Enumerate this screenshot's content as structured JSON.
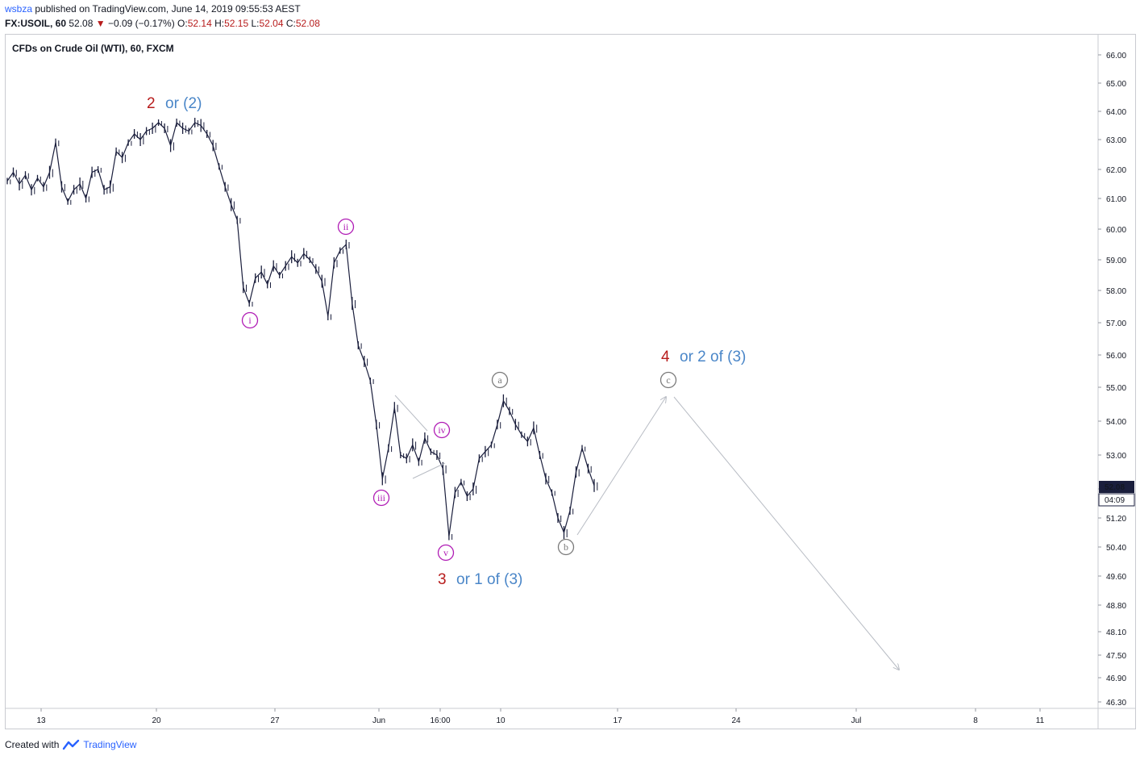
{
  "header": {
    "author": "wsbza",
    "published_text": "published on TradingView.com, June 14, 2019 09:55:53 AEST",
    "symbol": "FX:USOIL, 60",
    "last": "52.08",
    "change": "−0.09 (−0.17%)",
    "open_label": "O:",
    "open": "52.14",
    "high_label": "H:",
    "high": "52.15",
    "low_label": "L:",
    "low": "52.04",
    "close_label": "C:",
    "close": "52.08"
  },
  "footer": {
    "created_with": "Created with",
    "brand": "TradingView"
  },
  "colors": {
    "candle": "#1a1e3c",
    "wave_red": "#b71c1c",
    "wave_blue": "#4a86c8",
    "wave_magenta": "#b01cb5",
    "wave_gray": "#7a7a7a",
    "arrow": "#b8bcc4",
    "price_tag": "#1a1e3c"
  },
  "chart_data": {
    "type": "line",
    "title": "CFDs on Crude Oil (WTI), 60, FXCM",
    "xlabel": "",
    "ylabel": "",
    "ylim": [
      46.0,
      66.3
    ],
    "y_ticks": [
      "66.00",
      "65.00",
      "64.00",
      "63.00",
      "62.00",
      "61.00",
      "60.00",
      "59.00",
      "58.00",
      "57.00",
      "56.00",
      "55.00",
      "54.00",
      "53.00",
      "52.00",
      "51.20",
      "50.40",
      "49.60",
      "48.80",
      "48.10",
      "47.50",
      "46.90",
      "46.30"
    ],
    "x_ticks": [
      "13",
      "20",
      "27",
      "Jun",
      "16:00",
      "10",
      "17",
      "24",
      "Jul",
      "8",
      "11"
    ],
    "current_price": "52.08",
    "countdown": "04:09",
    "series": [
      {
        "name": "",
        "points": [
          [
            0,
            61.6
          ],
          [
            1,
            61.9
          ],
          [
            2,
            61.5
          ],
          [
            3,
            61.8
          ],
          [
            4,
            61.3
          ],
          [
            5,
            61.7
          ],
          [
            6,
            61.4
          ],
          [
            7,
            61.9
          ],
          [
            8,
            62.9
          ],
          [
            9,
            61.4
          ],
          [
            10,
            60.9
          ],
          [
            11,
            61.3
          ],
          [
            12,
            61.5
          ],
          [
            13,
            61.0
          ],
          [
            14,
            61.9
          ],
          [
            15,
            62.0
          ],
          [
            16,
            61.3
          ],
          [
            17,
            61.4
          ],
          [
            18,
            62.6
          ],
          [
            19,
            62.4
          ],
          [
            20,
            62.9
          ],
          [
            21,
            63.2
          ],
          [
            22,
            63.0
          ],
          [
            23,
            63.3
          ],
          [
            24,
            63.4
          ],
          [
            25,
            63.6
          ],
          [
            26,
            63.4
          ],
          [
            27,
            62.8
          ],
          [
            28,
            63.6
          ],
          [
            29,
            63.4
          ],
          [
            30,
            63.3
          ],
          [
            31,
            63.6
          ],
          [
            32,
            63.5
          ],
          [
            33,
            63.2
          ],
          [
            34,
            62.8
          ],
          [
            35,
            62.1
          ],
          [
            36,
            61.4
          ],
          [
            37,
            60.8
          ],
          [
            38,
            60.3
          ],
          [
            39,
            58.1
          ],
          [
            40,
            57.6
          ],
          [
            41,
            58.4
          ],
          [
            42,
            58.6
          ],
          [
            43,
            58.2
          ],
          [
            44,
            58.8
          ],
          [
            45,
            58.5
          ],
          [
            46,
            58.8
          ],
          [
            47,
            59.1
          ],
          [
            48,
            58.9
          ],
          [
            49,
            59.2
          ],
          [
            50,
            59.0
          ],
          [
            51,
            58.7
          ],
          [
            52,
            58.3
          ],
          [
            53,
            57.2
          ],
          [
            54,
            58.9
          ],
          [
            55,
            59.3
          ],
          [
            56,
            59.5
          ],
          [
            57,
            57.6
          ],
          [
            58,
            56.3
          ],
          [
            59,
            55.8
          ],
          [
            60,
            55.2
          ],
          [
            61,
            53.9
          ],
          [
            62,
            52.3
          ],
          [
            63,
            53.2
          ],
          [
            64,
            54.4
          ],
          [
            65,
            53.0
          ],
          [
            66,
            52.9
          ],
          [
            67,
            53.3
          ],
          [
            68,
            52.8
          ],
          [
            69,
            53.5
          ],
          [
            70,
            53.1
          ],
          [
            71,
            53.0
          ],
          [
            72,
            52.6
          ],
          [
            73,
            50.7
          ],
          [
            74,
            51.9
          ],
          [
            75,
            52.2
          ],
          [
            76,
            51.8
          ],
          [
            77,
            52.0
          ],
          [
            78,
            52.9
          ],
          [
            79,
            53.1
          ],
          [
            80,
            53.3
          ],
          [
            81,
            53.9
          ],
          [
            82,
            54.6
          ],
          [
            83,
            54.3
          ],
          [
            84,
            53.9
          ],
          [
            85,
            53.6
          ],
          [
            86,
            53.4
          ],
          [
            87,
            53.8
          ],
          [
            88,
            53.0
          ],
          [
            89,
            52.3
          ],
          [
            90,
            51.9
          ],
          [
            91,
            51.2
          ],
          [
            92,
            50.8
          ],
          [
            93,
            51.4
          ],
          [
            94,
            52.5
          ],
          [
            95,
            53.2
          ],
          [
            96,
            52.6
          ],
          [
            97,
            52.1
          ]
        ]
      }
    ],
    "annotations": [
      {
        "id": "w2",
        "label": "2",
        "alt": "or (2)"
      },
      {
        "id": "wi",
        "label": "i"
      },
      {
        "id": "wii",
        "label": "ii"
      },
      {
        "id": "wiii",
        "label": "iii"
      },
      {
        "id": "wiv",
        "label": "iv"
      },
      {
        "id": "wv",
        "label": "v"
      },
      {
        "id": "w3",
        "label": "3",
        "alt": "or 1 of (3)"
      },
      {
        "id": "wa",
        "label": "a"
      },
      {
        "id": "wb",
        "label": "b"
      },
      {
        "id": "wc",
        "label": "c"
      },
      {
        "id": "w4",
        "label": "4",
        "alt": "or 2 of (3)"
      }
    ]
  }
}
